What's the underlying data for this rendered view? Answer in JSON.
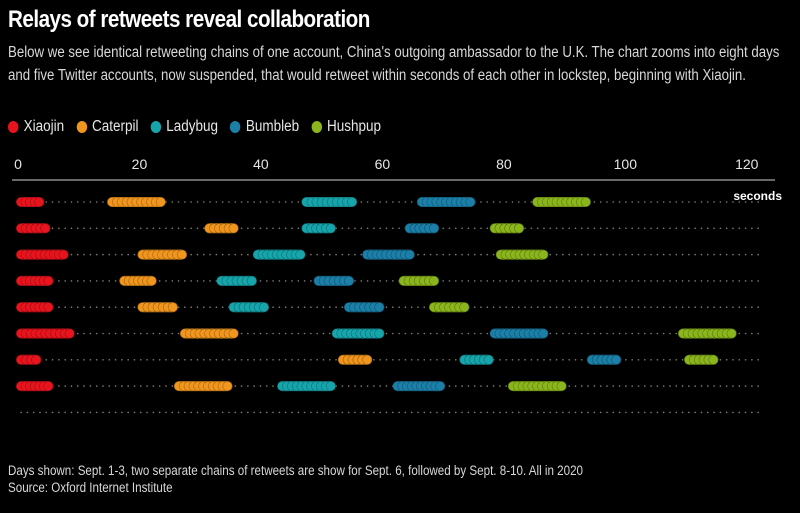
{
  "header": {
    "title": "Relays of retweets reveal collaboration",
    "subtitle": "Below we see identical retweeting chains of one account, China's outgoing ambassador to the U.K. The chart zooms into eight days and five Twitter accounts, now suspended, that would retweet within seconds of each other in lockstep, beginning with Xiaojin."
  },
  "footer": {
    "note": "Days shown: Sept. 1-3, two separate chains of retweets are show for Sept. 6, followed by Sept. 8-10. All in 2020",
    "source": "Source: Oxford Internet Institute"
  },
  "chart_data": {
    "type": "scatter",
    "x_unit": "seconds",
    "xlim": [
      0,
      123
    ],
    "x_ticks": [
      0,
      20,
      40,
      60,
      80,
      100,
      120
    ],
    "rows": 9,
    "series": [
      {
        "name": "Xiaojin",
        "color": "#e8141d",
        "spans": [
          [
            0.5,
            3.5
          ],
          [
            0.5,
            4.5
          ],
          [
            0.5,
            7.5
          ],
          [
            0.5,
            5
          ],
          [
            0.5,
            5
          ],
          [
            0.5,
            8.5
          ],
          [
            0.5,
            3
          ],
          [
            0.5,
            5
          ]
        ]
      },
      {
        "name": "Caterpil",
        "color": "#f0961e",
        "spans": [
          [
            15.5,
            23.5
          ],
          [
            31.5,
            35.5
          ],
          [
            20.5,
            27
          ],
          [
            17.5,
            22
          ],
          [
            20.5,
            25.5
          ],
          [
            27.5,
            35.5
          ],
          [
            53.5,
            57.5
          ],
          [
            26.5,
            34.5
          ]
        ]
      },
      {
        "name": "Ladybug",
        "color": "#17a5ac",
        "spans": [
          [
            47.5,
            55
          ],
          [
            47.5,
            51.5
          ],
          [
            39.5,
            46.5
          ],
          [
            33.5,
            38.5
          ],
          [
            35.5,
            40.5
          ],
          [
            52.5,
            59.5
          ],
          [
            73.5,
            77.5
          ],
          [
            43.5,
            51.5
          ]
        ]
      },
      {
        "name": "Bumbleb",
        "color": "#1b7fa8",
        "spans": [
          [
            66.5,
            74.5
          ],
          [
            64.5,
            68.5
          ],
          [
            57.5,
            64.5
          ],
          [
            49.5,
            54.5
          ],
          [
            54.5,
            59.5
          ],
          [
            78.5,
            86.5
          ],
          [
            94.5,
            98.5
          ],
          [
            62.5,
            69.5
          ]
        ]
      },
      {
        "name": "Hushpup",
        "color": "#8ab51c",
        "spans": [
          [
            85.5,
            93.5
          ],
          [
            78.5,
            82.5
          ],
          [
            79.5,
            86.5
          ],
          [
            63.5,
            68.5
          ],
          [
            68.5,
            73.5
          ],
          [
            109.5,
            117.5
          ],
          [
            110.5,
            114.5
          ],
          [
            81.5,
            89.5
          ]
        ]
      }
    ]
  }
}
